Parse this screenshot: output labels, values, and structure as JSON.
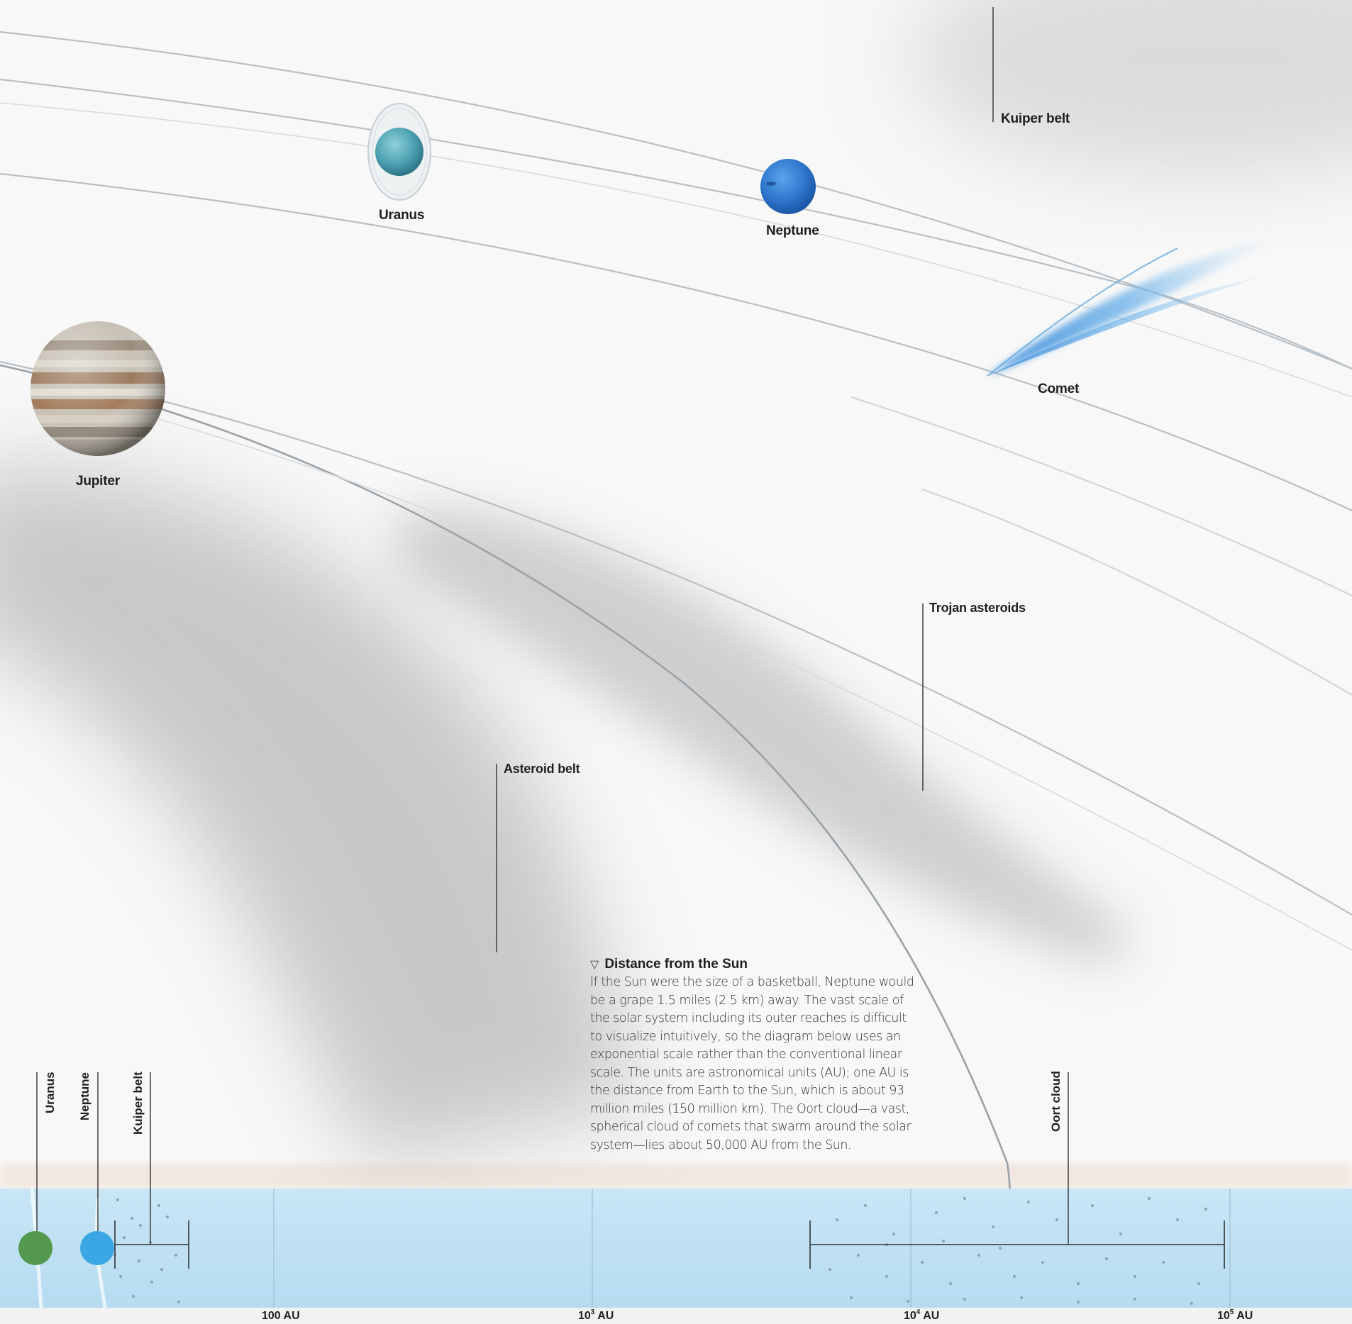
{
  "labels": {
    "kuiper_belt": "Kuiper belt",
    "uranus": "Uranus",
    "neptune": "Neptune",
    "comet": "Comet",
    "jupiter": "Jupiter",
    "trojan_asteroids": "Trojan asteroids",
    "asteroid_belt": "Asteroid belt"
  },
  "caption": {
    "icon": "down-triangle-icon",
    "title": "Distance from the Sun",
    "body": "If the Sun were the size of a basketball, Neptune would be a grape 1.5 miles (2.5 km) away. The vast scale of the solar system including its outer reaches is difficult to visualize intuitively, so the diagram below uses an exponential scale rather than the conventional linear scale. The units are astronomical units (AU); one AU is the distance from Earth to the Sun, which is about 93 million miles (150 million km). The Oort cloud—a vast, spherical cloud of comets that swarm around the solar system—lies about 50,000 AU from the Sun."
  },
  "scale_bar": {
    "labels": {
      "uranus": "Uranus",
      "neptune": "Neptune",
      "kuiper_belt": "Kuiper belt",
      "oort_cloud": "Oort cloud"
    },
    "ticks": [
      {
        "base": "100 AU",
        "exp": ""
      },
      {
        "base": "10",
        "exp": "3",
        "unit": " AU"
      },
      {
        "base": "10",
        "exp": "4",
        "unit": " AU"
      },
      {
        "base": "10",
        "exp": "5",
        "unit": " AU"
      }
    ]
  },
  "colors": {
    "band": "#bcdff2",
    "uranus_marker": "#55994f",
    "neptune_marker": "#3aa6e3",
    "orbit": "#b4bcc2",
    "comet": "#4f9fe0"
  }
}
